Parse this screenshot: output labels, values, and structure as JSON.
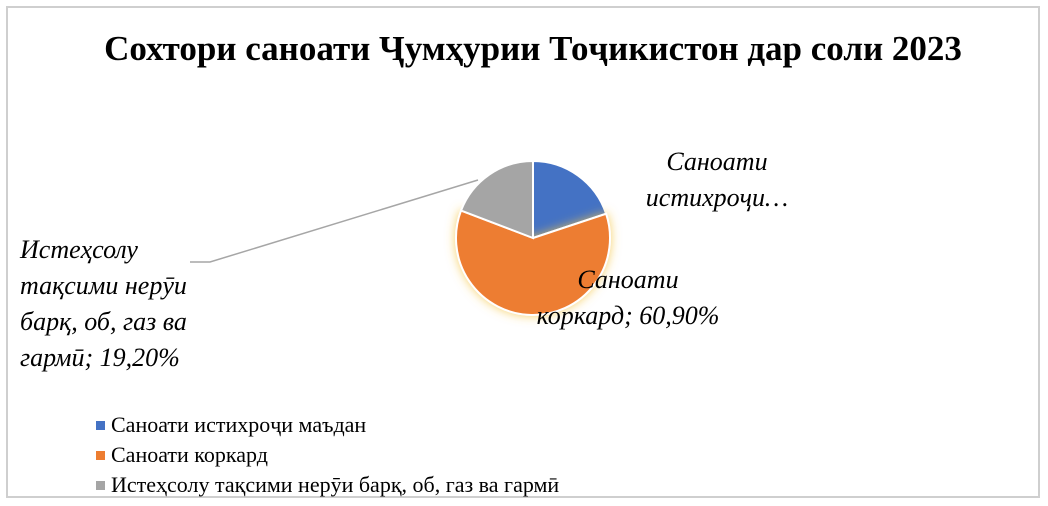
{
  "chart_data": {
    "type": "pie",
    "title": "Сохтори саноати Ҷумҳурии Тоҷикистон дар соли 2023",
    "categories": [
      "Саноати истихроҷи маъдан",
      "Саноати коркард",
      "Истеҳсолу тақсими нерӯи барқ, об, газ ва гармӣ"
    ],
    "values": [
      19.9,
      60.9,
      19.2
    ],
    "value_labels": [
      "Саноати\nистихроҷи…",
      "Саноати\nкоркард; 60,90%",
      "Истеҳсолу\nтақсими нерӯи\nбарқ, об, газ ва\nгармӣ; 19,20%"
    ],
    "colors": [
      "#4472c4",
      "#ed7d31",
      "#a5a5a5"
    ]
  }
}
